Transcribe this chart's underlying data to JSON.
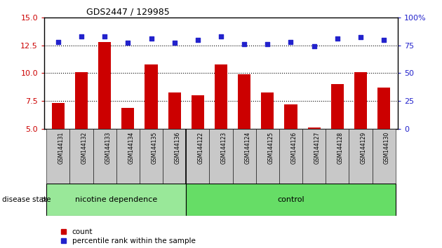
{
  "title": "GDS2447 / 129985",
  "samples": [
    "GSM144131",
    "GSM144132",
    "GSM144133",
    "GSM144134",
    "GSM144135",
    "GSM144136",
    "GSM144122",
    "GSM144123",
    "GSM144124",
    "GSM144125",
    "GSM144126",
    "GSM144127",
    "GSM144128",
    "GSM144129",
    "GSM144130"
  ],
  "bar_values": [
    7.3,
    10.1,
    12.8,
    6.9,
    10.8,
    8.3,
    8.0,
    10.8,
    9.9,
    8.3,
    7.2,
    5.1,
    9.0,
    10.1,
    8.7
  ],
  "dot_values_left_scale": [
    12.8,
    13.3,
    13.3,
    12.7,
    13.1,
    12.7,
    13.0,
    13.3,
    12.6,
    12.6,
    12.8,
    12.4,
    13.1,
    13.2,
    13.0
  ],
  "bar_color": "#cc0000",
  "dot_color": "#2222cc",
  "ylim_left": [
    5,
    15
  ],
  "ylim_right": [
    0,
    100
  ],
  "yticks_left": [
    5,
    7.5,
    10,
    12.5,
    15
  ],
  "yticks_right": [
    0,
    25,
    50,
    75,
    100
  ],
  "nicotine_count": 6,
  "xlabels_bg": "#c8c8c8",
  "group1_color": "#99e899",
  "group2_color": "#66dd66",
  "group1_label": "nicotine dependence",
  "group2_label": "control",
  "group_label_prefix": "disease state",
  "legend_count": "count",
  "legend_pct": "percentile rank within the sample"
}
